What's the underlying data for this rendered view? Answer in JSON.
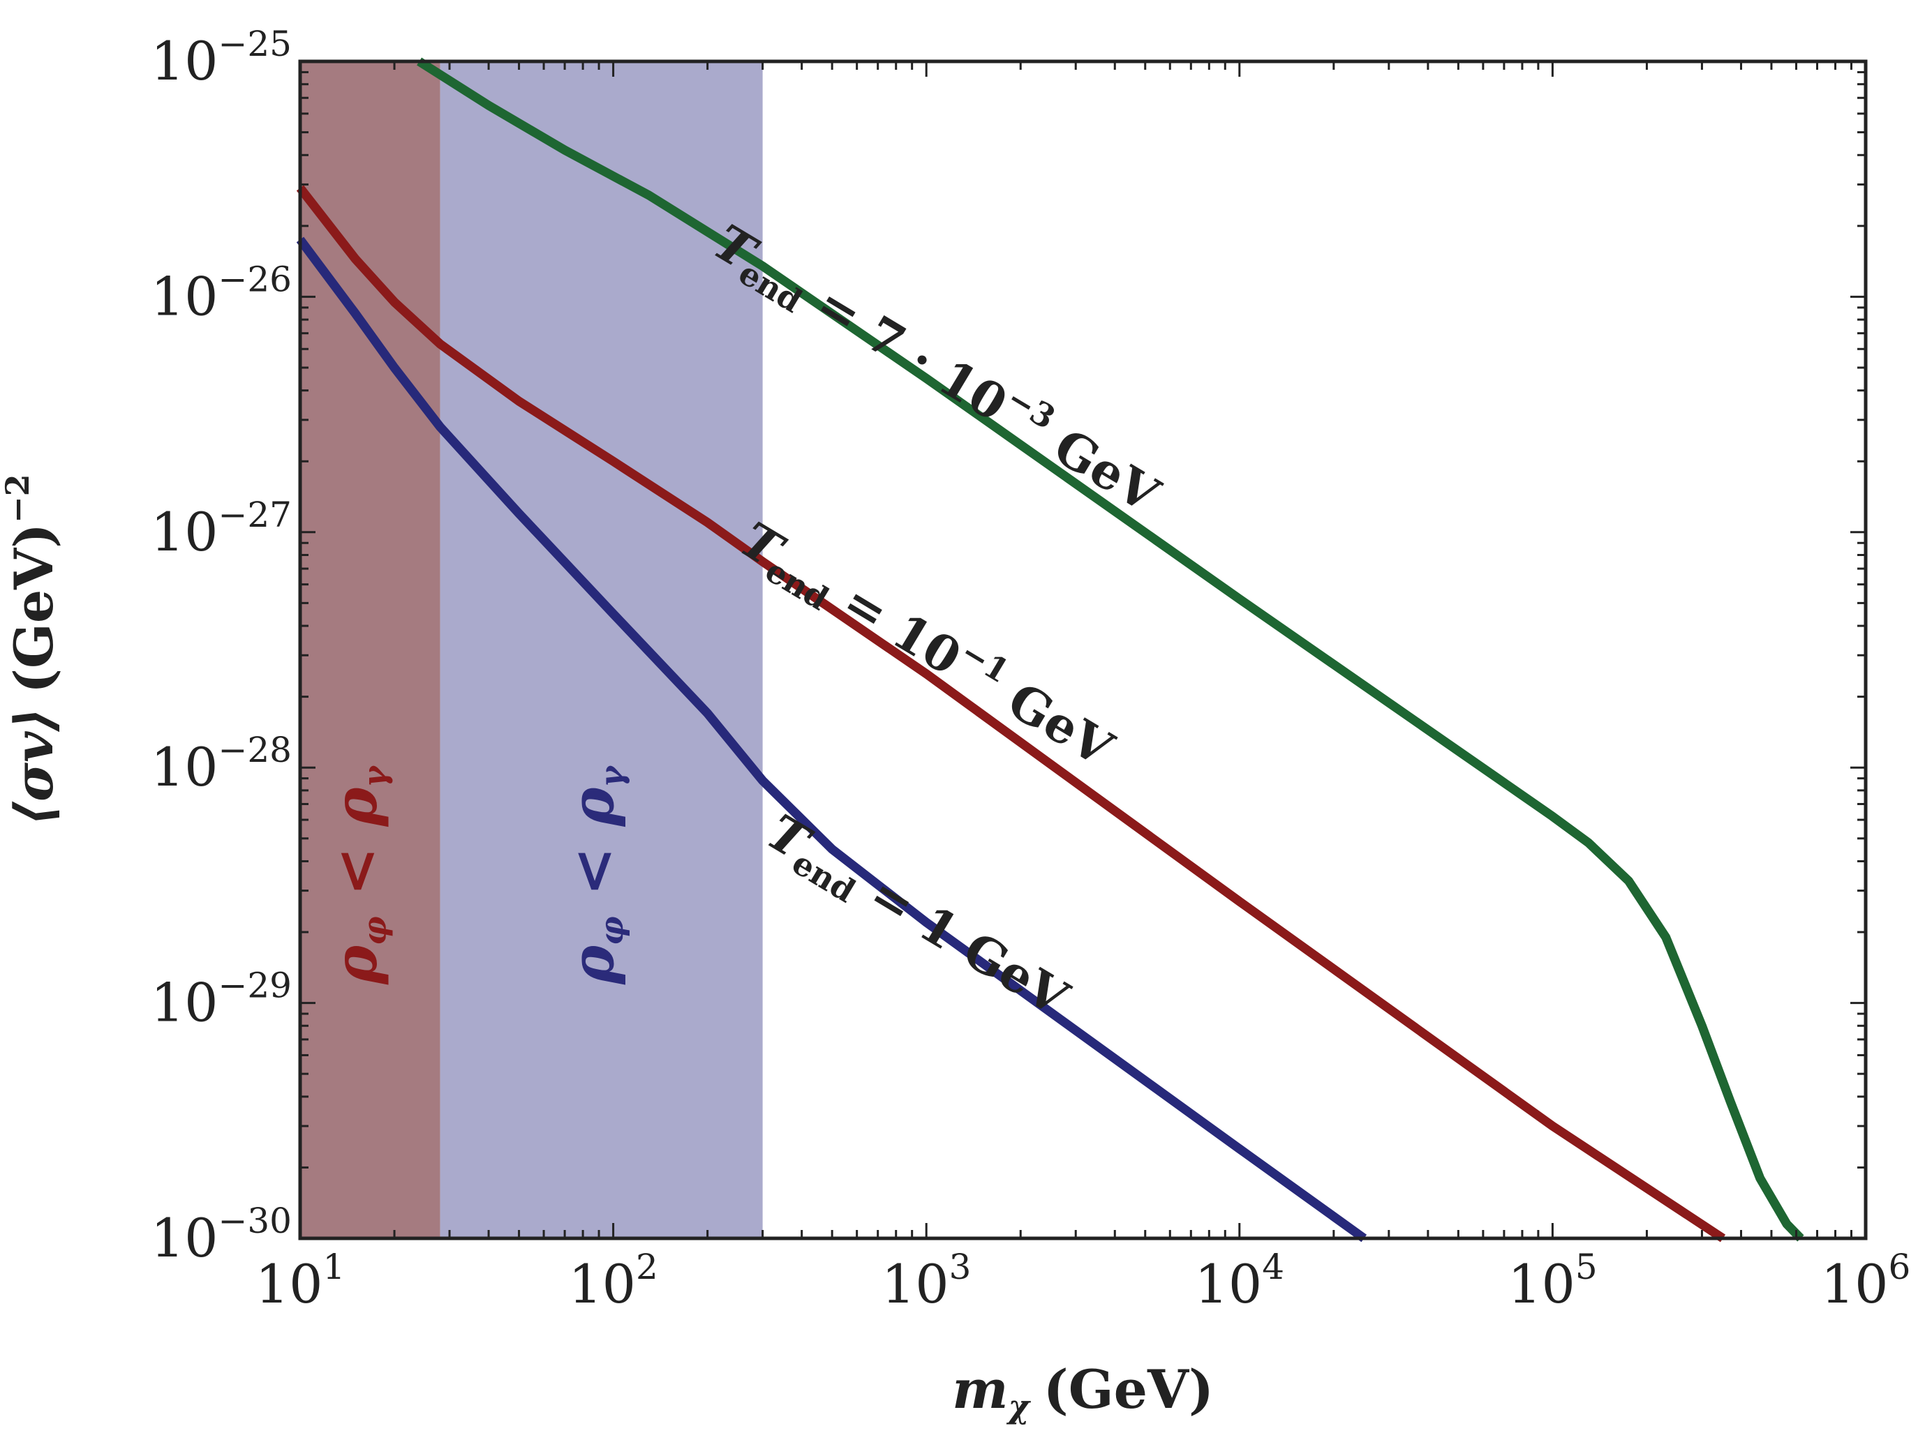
{
  "chart_data": {
    "type": "line",
    "x_scale": "log",
    "y_scale": "log",
    "xlim": [
      10,
      1000000
    ],
    "ylim": [
      1e-30,
      1e-25
    ],
    "xlabel": "m",
    "xlabel_sub": "χ",
    "xlabel_unit": "(GeV)",
    "ylabel": "⟨σv⟩",
    "ylabel_unit": "(GeV)",
    "ylabel_exp": "−2",
    "x_ticks": [
      {
        "value": 10,
        "base": "10",
        "exp": "1"
      },
      {
        "value": 100,
        "base": "10",
        "exp": "2"
      },
      {
        "value": 1000,
        "base": "10",
        "exp": "3"
      },
      {
        "value": 10000,
        "base": "10",
        "exp": "4"
      },
      {
        "value": 100000,
        "base": "10",
        "exp": "5"
      },
      {
        "value": 1000000,
        "base": "10",
        "exp": "6"
      }
    ],
    "y_ticks": [
      {
        "value": 1e-25,
        "base": "10",
        "exp": "−25"
      },
      {
        "value": 1e-26,
        "base": "10",
        "exp": "−26"
      },
      {
        "value": 1e-27,
        "base": "10",
        "exp": "−27"
      },
      {
        "value": 1e-28,
        "base": "10",
        "exp": "−28"
      },
      {
        "value": 1e-29,
        "base": "10",
        "exp": "−29"
      },
      {
        "value": 1e-30,
        "base": "10",
        "exp": "−30"
      }
    ],
    "regions": [
      {
        "name": "red-region",
        "x_range": [
          10,
          28
        ],
        "color": "#a57b80",
        "label_main": "ρ",
        "label_sub1": "φ",
        "label_op": " < ",
        "label_main2": "ρ",
        "label_sub2": "γ",
        "label_color": "#8b1a1a",
        "label_x": 17.5,
        "label_y": 1.2e-29
      },
      {
        "name": "blue-region",
        "x_range": [
          28,
          300
        ],
        "color": "#aaaacc",
        "label_main": "ρ",
        "label_sub1": "φ",
        "label_op": " < ",
        "label_main2": "ρ",
        "label_sub2": "γ",
        "label_color": "#2b2b7a",
        "label_x": 100,
        "label_y": 1.2e-29
      }
    ],
    "series": [
      {
        "name": "T_end = 7·10^-3 GeV",
        "color": "#1e6632",
        "points": [
          [
            24,
            1e-25
          ],
          [
            40,
            6.5e-26
          ],
          [
            70,
            4.2e-26
          ],
          [
            130,
            2.7e-26
          ],
          [
            300,
            1.35e-26
          ],
          [
            1000,
            4.5e-27
          ],
          [
            10000,
            5.2e-28
          ],
          [
            100000,
            6.2e-29
          ],
          [
            130000,
            4.8e-29
          ],
          [
            175000,
            3.3e-29
          ],
          [
            230000,
            1.9e-29
          ],
          [
            300000,
            8e-30
          ],
          [
            370000,
            3.8e-30
          ],
          [
            460000,
            1.8e-30
          ],
          [
            560000,
            1.15e-30
          ],
          [
            620000,
            1e-30
          ]
        ]
      },
      {
        "name": "T_end = 10^-1 GeV",
        "color": "#8b1a1a",
        "points": [
          [
            10,
            2.9e-26
          ],
          [
            15,
            1.45e-26
          ],
          [
            20,
            9.5e-27
          ],
          [
            28,
            6.3e-27
          ],
          [
            50,
            3.6e-27
          ],
          [
            100,
            2e-27
          ],
          [
            200,
            1.1e-27
          ],
          [
            300,
            7.5e-28
          ],
          [
            1000,
            2.5e-28
          ],
          [
            10000,
            2.7e-29
          ],
          [
            100000,
            3e-30
          ],
          [
            350000,
            1e-30
          ]
        ]
      },
      {
        "name": "T_end = 1 GeV",
        "color": "#27297a",
        "points": [
          [
            10,
            1.75e-26
          ],
          [
            15,
            8.5e-27
          ],
          [
            20,
            5e-27
          ],
          [
            28,
            2.8e-27
          ],
          [
            50,
            1.2e-27
          ],
          [
            100,
            4.5e-28
          ],
          [
            200,
            1.7e-28
          ],
          [
            300,
            8.8e-29
          ],
          [
            500,
            4.5e-29
          ],
          [
            1000,
            2.2e-29
          ],
          [
            10000,
            2.4e-30
          ],
          [
            25000,
            1e-30
          ]
        ]
      }
    ],
    "annotations": [
      {
        "name": "label-green",
        "main": "T",
        "sub": "end",
        "text": " = 7 · 10",
        "sup": "−3",
        "unit": " GeV",
        "x": 1010,
        "y": 4.3e-27,
        "rotate": 31
      },
      {
        "name": "label-red",
        "main": "T",
        "sub": "end",
        "text": " = 10",
        "sup": "−1",
        "unit": " GeV",
        "x": 940,
        "y": 2.9e-28,
        "rotate": 31
      },
      {
        "name": "label-blue",
        "main": "T",
        "sub": "end",
        "text": " = 1 GeV",
        "sup": "",
        "unit": "",
        "x": 880,
        "y": 2.05e-29,
        "rotate": 31
      }
    ]
  }
}
